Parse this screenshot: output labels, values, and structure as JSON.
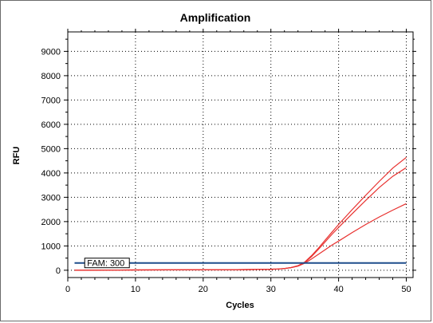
{
  "chart_data": {
    "type": "line",
    "title": "Amplification",
    "xlabel": "Cycles",
    "ylabel": "RFU",
    "xlim": [
      0,
      51
    ],
    "ylim": [
      -300,
      9800
    ],
    "x_ticks": [
      0,
      10,
      20,
      30,
      40,
      50
    ],
    "y_ticks": [
      0,
      1000,
      2000,
      3000,
      4000,
      5000,
      6000,
      7000,
      8000,
      9000
    ],
    "grid": true,
    "grid_style": "dotted",
    "colors": {
      "curve": "#e8302e",
      "threshold": "#1f4e8c",
      "baseline": "#bdbdbd"
    },
    "threshold": {
      "label": "FAM: 300",
      "value": 300
    },
    "series": [
      {
        "x": [
          1,
          5,
          10,
          15,
          20,
          25,
          28,
          30,
          31,
          32,
          33,
          34,
          35,
          36,
          37,
          38,
          39,
          40,
          42,
          44,
          46,
          48,
          50
        ],
        "y": [
          0,
          5,
          10,
          15,
          20,
          25,
          30,
          40,
          50,
          70,
          110,
          190,
          340,
          600,
          900,
          1230,
          1560,
          1880,
          2490,
          3080,
          3650,
          4200,
          4640
        ]
      },
      {
        "x": [
          1,
          5,
          10,
          15,
          20,
          25,
          28,
          30,
          31,
          32,
          33,
          34,
          35,
          36,
          37,
          38,
          39,
          40,
          42,
          44,
          46,
          48,
          50
        ],
        "y": [
          0,
          5,
          10,
          15,
          20,
          25,
          30,
          40,
          50,
          70,
          110,
          180,
          320,
          560,
          850,
          1160,
          1470,
          1760,
          2320,
          2870,
          3400,
          3860,
          4220
        ]
      },
      {
        "x": [
          1,
          5,
          10,
          15,
          20,
          25,
          28,
          30,
          31,
          32,
          33,
          34,
          35,
          36,
          37,
          38,
          39,
          40,
          42,
          44,
          46,
          48,
          50
        ],
        "y": [
          0,
          5,
          10,
          15,
          20,
          25,
          30,
          40,
          50,
          70,
          110,
          170,
          290,
          460,
          650,
          840,
          1030,
          1200,
          1550,
          1880,
          2190,
          2470,
          2740
        ]
      }
    ]
  }
}
